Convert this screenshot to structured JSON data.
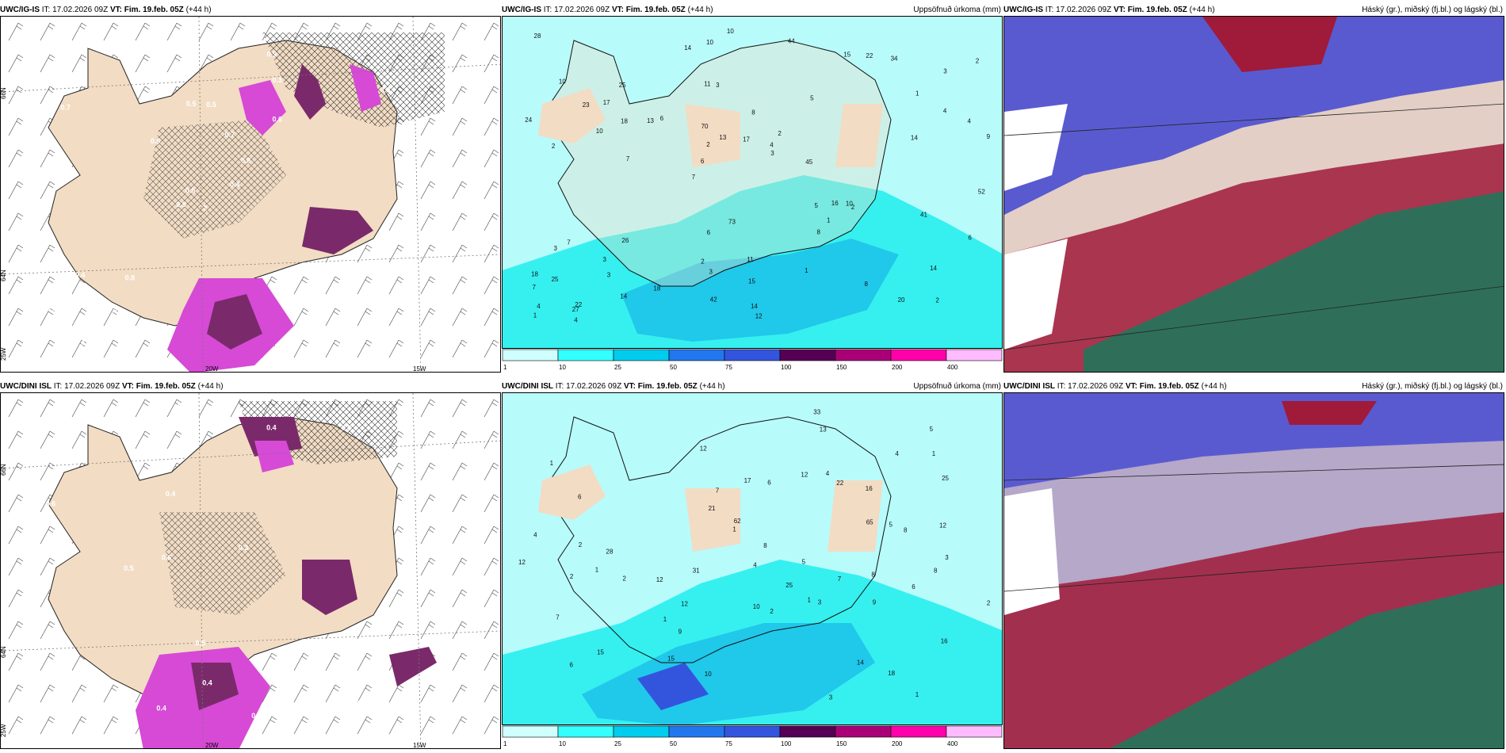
{
  "header_labels": {
    "it": "IT:",
    "vt": "VT:"
  },
  "rows": [
    {
      "model": "UWC/IG-IS",
      "it_value": "17.02.2026 09Z",
      "vt_value": "Fim. 19.feb. 05Z",
      "lead": "(+44 h)",
      "precip_numbers": [
        "2",
        "2",
        "3",
        "7",
        "5",
        "22",
        "11",
        "8",
        "7",
        "6",
        "7",
        "3",
        "3",
        "2",
        "2",
        "10",
        "10",
        "9",
        "5",
        "4",
        "6",
        "2",
        "2",
        "25",
        "15",
        "26",
        "20",
        "14",
        "10",
        "12",
        "13",
        "10",
        "8",
        "14",
        "4",
        "4",
        "4",
        "3",
        "3",
        "3",
        "1",
        "2",
        "1",
        "1",
        "3",
        "4",
        "1",
        "11",
        "34",
        "10",
        "7",
        "24",
        "17",
        "22",
        "27",
        "44",
        "14",
        "13",
        "6",
        "6",
        "18",
        "16",
        "18",
        "18",
        "28",
        "23",
        "52",
        "70",
        "15",
        "17",
        "25",
        "45",
        "41",
        "42",
        "14",
        "73",
        "8",
        "14"
      ],
      "wind_labels": {
        "lon1": "20W",
        "lon2": "15W",
        "lat1": "66N",
        "lat2": "64N",
        "lon3": "25W"
      },
      "snow_numbers": [
        "2",
        "0.7",
        "0.5",
        "0.9",
        "0.8",
        "0.8",
        "0.9",
        "0.5",
        "0.3",
        "0.4",
        "0.5",
        "0.7",
        "0.6",
        "0.3",
        "0.8",
        "0.6",
        "1.0",
        "0.5",
        "0.7",
        "0.4",
        "0.6",
        "0.3",
        "0.2"
      ]
    },
    {
      "model": "UWC/DINI ISL",
      "it_value": "17.02.2026 09Z",
      "vt_value": "Fim. 19.feb. 05Z",
      "lead": "(+44 h)",
      "precip_numbers": [
        "1",
        "1",
        "1",
        "1",
        "16",
        "6",
        "15",
        "12",
        "16",
        "17",
        "22",
        "18",
        "9",
        "12",
        "5",
        "7",
        "8",
        "8",
        "4",
        "6",
        "5",
        "6",
        "5",
        "2",
        "3",
        "2",
        "2",
        "4",
        "1",
        "1",
        "3",
        "2",
        "1",
        "4",
        "7",
        "6",
        "8",
        "14",
        "4",
        "3",
        "12",
        "2",
        "15",
        "33",
        "31",
        "28",
        "25",
        "13",
        "12",
        "10",
        "7",
        "12",
        "9",
        "8",
        "21",
        "12",
        "10",
        "62",
        "25",
        "65"
      ],
      "wind_labels": {
        "lon1": "20W",
        "lon2": "15W",
        "lat1": "66N",
        "lat2": "64N",
        "lon3": "25W"
      },
      "snow_numbers": [
        "0.4",
        "0.3",
        "0.5",
        "0.4",
        "0.8",
        "0.7",
        "0.5",
        "0.4",
        "1.7",
        "0.4",
        "0.3",
        "0.4",
        "0.6",
        "0.5",
        "0.4",
        "0.3",
        "0.6"
      ]
    }
  ],
  "precip_title": "Uppsöfnuð úrkoma (mm)",
  "cloud_title": "Háský (gr.), miðský (fj.bl.) og lágský (bl.)",
  "colorbar": {
    "ticks": [
      "1",
      "10",
      "25",
      "50",
      "75",
      "100",
      "150",
      "200",
      "400"
    ],
    "colors": [
      "#cfffff",
      "#33ffff",
      "#00ccee",
      "#2277ee",
      "#3355dd",
      "#550055",
      "#aa0077",
      "#ff00aa",
      "#ffbbff"
    ]
  },
  "colors": {
    "land": "#f2dcc4",
    "precip_light": "#b8fbfb",
    "precip_mid": "#36f0f0",
    "precip_dark": "#20c8ea",
    "snow_magenta": "#d64ad6",
    "snow_dark": "#7a2a6a",
    "cloud_blue": "#5a5ad0",
    "cloud_red": "#a01a3a",
    "cloud_green": "#2f6f5a"
  }
}
